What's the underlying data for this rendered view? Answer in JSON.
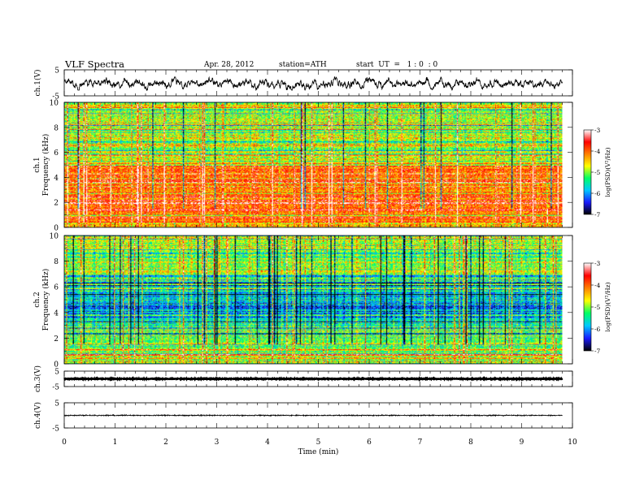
{
  "header": {
    "title": "VLF  Spectra",
    "date": "Apr. 28, 2012",
    "station": "station=ATH",
    "start": "start  UT  =   1 : 0  : 0"
  },
  "chart_data": [
    {
      "type": "line",
      "panel": "ch1-waveform",
      "ylabel": "ch.1(V)",
      "ylim": [
        -5,
        5
      ],
      "yticks": [
        "5",
        "-5"
      ],
      "xlim": [
        0,
        10
      ],
      "amplitude_range": [
        -2.8,
        2.2
      ],
      "color": "#000000"
    },
    {
      "type": "heatmap",
      "panel": "ch1-spectrogram",
      "ylabel": "ch.1\nFrequency  (kHz)",
      "ylim": [
        0,
        10
      ],
      "yticks": [
        "0",
        "2",
        "4",
        "6",
        "8",
        "10"
      ],
      "xlim": [
        0,
        9.8
      ],
      "colorbar": {
        "label": "log(PSD)(V²/Hz)",
        "range": [
          -7,
          -3
        ],
        "ticks": [
          "-3",
          "-4",
          "-5",
          "-6",
          "-7"
        ],
        "colors": [
          "#000000",
          "#1a1aff",
          "#00c8ff",
          "#00ff64",
          "#ffff00",
          "#ff8000",
          "#ff0000",
          "#ffffff"
        ]
      },
      "frequency_profile_khz_logpsd": [
        [
          0,
          -4.3
        ],
        [
          1,
          -4.0
        ],
        [
          2,
          -3.9
        ],
        [
          3,
          -4.1
        ],
        [
          4,
          -4.0
        ],
        [
          5,
          -3.9
        ],
        [
          5.5,
          -4.9
        ],
        [
          7,
          -5.0
        ],
        [
          8,
          -4.9
        ],
        [
          9,
          -4.8
        ],
        [
          10,
          -4.9
        ]
      ]
    },
    {
      "type": "heatmap",
      "panel": "ch2-spectrogram",
      "ylabel": "ch.2\nFrequency  (kHz)",
      "ylim": [
        0,
        10
      ],
      "yticks": [
        "0",
        "2",
        "4",
        "6",
        "8",
        "10"
      ],
      "xlim": [
        0,
        9.8
      ],
      "colorbar": {
        "label": "log(PSD)(V²/Hz)",
        "range": [
          -7,
          -3
        ],
        "ticks": [
          "-3",
          "-4",
          "-5",
          "-6",
          "-7"
        ],
        "colors": [
          "#000000",
          "#1a1aff",
          "#00c8ff",
          "#00ff64",
          "#ffff00",
          "#ff8000",
          "#ff0000",
          "#ffffff"
        ]
      },
      "frequency_profile_khz_logpsd": [
        [
          0,
          -4.8
        ],
        [
          1,
          -5.0
        ],
        [
          2,
          -5.2
        ],
        [
          3,
          -5.5
        ],
        [
          4,
          -5.9
        ],
        [
          5,
          -5.6
        ],
        [
          6,
          -5.9
        ],
        [
          7,
          -5.1
        ],
        [
          8,
          -5.0
        ],
        [
          9,
          -5.0
        ],
        [
          10,
          -5.1
        ]
      ]
    },
    {
      "type": "line",
      "panel": "ch3-waveform",
      "ylabel": "ch.3(V)",
      "ylim": [
        -5,
        5
      ],
      "yticks": [
        "5",
        "-5"
      ],
      "xlim": [
        0,
        10
      ],
      "level": 0,
      "amplitude_range": [
        -0.15,
        0.15
      ],
      "color": "#000000"
    },
    {
      "type": "line",
      "panel": "ch4-waveform",
      "ylabel": "ch.4(V)",
      "ylim": [
        -5,
        5
      ],
      "yticks": [
        "5",
        "-5"
      ],
      "xlim": [
        0,
        10
      ],
      "level": 0,
      "amplitude_range": [
        -0.3,
        0.3
      ],
      "color": "#000000"
    }
  ],
  "xaxis": {
    "label": "Time  (min)",
    "ticks": [
      "0",
      "1",
      "2",
      "3",
      "4",
      "5",
      "6",
      "7",
      "8",
      "9",
      "10"
    ]
  }
}
